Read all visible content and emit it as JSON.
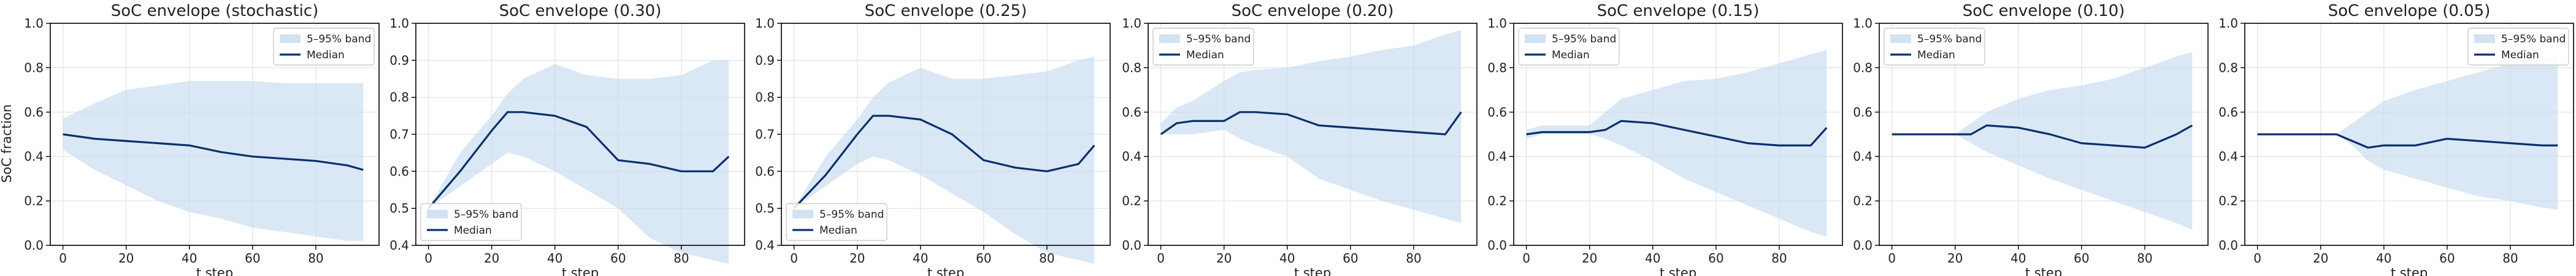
{
  "figure": {
    "ylabel": "SoC fraction",
    "colors": {
      "band": "#c6dbef",
      "median": "#08306b",
      "grid": "#e6e6e6",
      "axis": "#000000"
    }
  },
  "chart_data": [
    {
      "type": "area",
      "title": "SoC envelope (stochastic)",
      "xlabel": "t step",
      "ylabel": "SoC fraction",
      "xlim": [
        -4,
        100
      ],
      "ylim": [
        0,
        1
      ],
      "xticks": [
        0,
        20,
        40,
        60,
        80
      ],
      "yticks": [
        0.0,
        0.2,
        0.4,
        0.6,
        0.8,
        1.0
      ],
      "grid": true,
      "legend": {
        "position": "top-right",
        "entries": [
          "5–95% band",
          "Median"
        ]
      },
      "x": [
        0,
        10,
        20,
        30,
        40,
        50,
        60,
        70,
        80,
        90,
        95
      ],
      "series": [
        {
          "name": "5–95% band",
          "lower": [
            0.43,
            0.34,
            0.27,
            0.2,
            0.15,
            0.12,
            0.08,
            0.06,
            0.04,
            0.02,
            0.02
          ],
          "upper": [
            0.57,
            0.64,
            0.7,
            0.72,
            0.74,
            0.74,
            0.74,
            0.73,
            0.73,
            0.73,
            0.73
          ]
        },
        {
          "name": "Median",
          "values": [
            0.5,
            0.48,
            0.47,
            0.46,
            0.45,
            0.42,
            0.4,
            0.39,
            0.38,
            0.36,
            0.34
          ]
        }
      ]
    },
    {
      "type": "area",
      "title": "SoC envelope (0.30)",
      "xlabel": "t step",
      "xlim": [
        -4,
        100
      ],
      "ylim": [
        0.4,
        1.0
      ],
      "xticks": [
        0,
        20,
        40,
        60,
        80
      ],
      "yticks": [
        0.4,
        0.5,
        0.6,
        0.7,
        0.8,
        0.9,
        1.0
      ],
      "grid": true,
      "legend": {
        "position": "bottom-left",
        "entries": [
          "5–95% band",
          "Median"
        ]
      },
      "x": [
        0,
        10,
        20,
        25,
        30,
        40,
        50,
        60,
        70,
        80,
        90,
        95
      ],
      "series": [
        {
          "name": "5–95% band",
          "lower": [
            0.5,
            0.56,
            0.62,
            0.65,
            0.64,
            0.6,
            0.55,
            0.5,
            0.42,
            0.38,
            0.36,
            0.35
          ],
          "upper": [
            0.5,
            0.65,
            0.75,
            0.81,
            0.85,
            0.89,
            0.86,
            0.85,
            0.85,
            0.86,
            0.9,
            0.9
          ]
        },
        {
          "name": "Median",
          "values": [
            0.5,
            0.6,
            0.71,
            0.76,
            0.76,
            0.75,
            0.72,
            0.63,
            0.62,
            0.6,
            0.6,
            0.64
          ]
        }
      ]
    },
    {
      "type": "area",
      "title": "SoC envelope (0.25)",
      "xlabel": "t step",
      "xlim": [
        -4,
        100
      ],
      "ylim": [
        0.4,
        1.0
      ],
      "xticks": [
        0,
        20,
        40,
        60,
        80
      ],
      "yticks": [
        0.4,
        0.5,
        0.6,
        0.7,
        0.8,
        0.9,
        1.0
      ],
      "grid": true,
      "legend": {
        "position": "bottom-left",
        "entries": [
          "5–95% band",
          "Median"
        ]
      },
      "x": [
        0,
        10,
        20,
        25,
        30,
        40,
        50,
        60,
        70,
        80,
        90,
        95
      ],
      "series": [
        {
          "name": "5–95% band",
          "lower": [
            0.5,
            0.56,
            0.62,
            0.64,
            0.63,
            0.59,
            0.54,
            0.49,
            0.43,
            0.38,
            0.36,
            0.35
          ],
          "upper": [
            0.5,
            0.64,
            0.74,
            0.8,
            0.84,
            0.88,
            0.85,
            0.85,
            0.86,
            0.87,
            0.9,
            0.91
          ]
        },
        {
          "name": "Median",
          "values": [
            0.5,
            0.59,
            0.7,
            0.75,
            0.75,
            0.74,
            0.7,
            0.63,
            0.61,
            0.6,
            0.62,
            0.67
          ]
        }
      ]
    },
    {
      "type": "area",
      "title": "SoC envelope (0.20)",
      "xlabel": "t step",
      "xlim": [
        -4,
        100
      ],
      "ylim": [
        0.0,
        1.0
      ],
      "xticks": [
        0,
        20,
        40,
        60,
        80
      ],
      "yticks": [
        0.0,
        0.2,
        0.4,
        0.6,
        0.8,
        1.0
      ],
      "grid": true,
      "legend": {
        "position": "top-left",
        "entries": [
          "5–95% band",
          "Median"
        ]
      },
      "x": [
        0,
        5,
        10,
        20,
        25,
        30,
        40,
        50,
        60,
        70,
        80,
        90,
        95
      ],
      "series": [
        {
          "name": "5–95% band",
          "lower": [
            0.5,
            0.5,
            0.5,
            0.52,
            0.48,
            0.45,
            0.4,
            0.3,
            0.25,
            0.2,
            0.16,
            0.12,
            0.1
          ],
          "upper": [
            0.55,
            0.62,
            0.65,
            0.74,
            0.78,
            0.79,
            0.8,
            0.83,
            0.85,
            0.88,
            0.9,
            0.95,
            0.97
          ]
        },
        {
          "name": "Median",
          "values": [
            0.5,
            0.55,
            0.56,
            0.56,
            0.6,
            0.6,
            0.59,
            0.54,
            0.53,
            0.52,
            0.51,
            0.5,
            0.6
          ]
        }
      ]
    },
    {
      "type": "area",
      "title": "SoC envelope (0.15)",
      "xlabel": "t step",
      "xlim": [
        -4,
        100
      ],
      "ylim": [
        0.0,
        1.0
      ],
      "xticks": [
        0,
        20,
        40,
        60,
        80
      ],
      "yticks": [
        0.0,
        0.2,
        0.4,
        0.6,
        0.8,
        1.0
      ],
      "grid": true,
      "legend": {
        "position": "top-left",
        "entries": [
          "5–95% band",
          "Median"
        ]
      },
      "x": [
        0,
        5,
        10,
        20,
        25,
        30,
        40,
        50,
        60,
        70,
        80,
        90,
        95
      ],
      "series": [
        {
          "name": "5–95% band",
          "lower": [
            0.48,
            0.5,
            0.5,
            0.5,
            0.48,
            0.45,
            0.38,
            0.3,
            0.24,
            0.18,
            0.12,
            0.06,
            0.04
          ],
          "upper": [
            0.52,
            0.54,
            0.54,
            0.54,
            0.6,
            0.66,
            0.7,
            0.74,
            0.75,
            0.78,
            0.82,
            0.86,
            0.88
          ]
        },
        {
          "name": "Median",
          "values": [
            0.5,
            0.51,
            0.51,
            0.51,
            0.52,
            0.56,
            0.55,
            0.52,
            0.49,
            0.46,
            0.45,
            0.45,
            0.53
          ]
        }
      ]
    },
    {
      "type": "area",
      "title": "SoC envelope (0.10)",
      "xlabel": "t step",
      "xlim": [
        -4,
        100
      ],
      "ylim": [
        0.0,
        1.0
      ],
      "xticks": [
        0,
        20,
        40,
        60,
        80
      ],
      "yticks": [
        0.0,
        0.2,
        0.4,
        0.6,
        0.8,
        1.0
      ],
      "grid": true,
      "legend": {
        "position": "top-left",
        "entries": [
          "5–95% band",
          "Median"
        ]
      },
      "x": [
        0,
        10,
        20,
        25,
        30,
        40,
        50,
        60,
        70,
        80,
        90,
        95
      ],
      "series": [
        {
          "name": "5–95% band",
          "lower": [
            0.5,
            0.5,
            0.5,
            0.46,
            0.42,
            0.36,
            0.3,
            0.25,
            0.2,
            0.15,
            0.1,
            0.07
          ],
          "upper": [
            0.5,
            0.5,
            0.5,
            0.55,
            0.6,
            0.66,
            0.7,
            0.72,
            0.75,
            0.8,
            0.85,
            0.87
          ]
        },
        {
          "name": "Median",
          "values": [
            0.5,
            0.5,
            0.5,
            0.5,
            0.54,
            0.53,
            0.5,
            0.46,
            0.45,
            0.44,
            0.5,
            0.54
          ]
        }
      ]
    },
    {
      "type": "area",
      "title": "SoC envelope (0.05)",
      "xlabel": "t step",
      "xlim": [
        -4,
        100
      ],
      "ylim": [
        0.0,
        1.0
      ],
      "xticks": [
        0,
        20,
        40,
        60,
        80
      ],
      "yticks": [
        0.0,
        0.2,
        0.4,
        0.6,
        0.8,
        1.0
      ],
      "grid": true,
      "legend": {
        "position": "top-right",
        "entries": [
          "5–95% band",
          "Median"
        ]
      },
      "x": [
        0,
        10,
        20,
        25,
        30,
        35,
        40,
        50,
        60,
        70,
        80,
        90,
        95
      ],
      "series": [
        {
          "name": "5–95% band",
          "lower": [
            0.5,
            0.5,
            0.5,
            0.5,
            0.45,
            0.38,
            0.34,
            0.3,
            0.26,
            0.22,
            0.2,
            0.17,
            0.16
          ],
          "upper": [
            0.5,
            0.5,
            0.5,
            0.5,
            0.55,
            0.6,
            0.65,
            0.7,
            0.74,
            0.78,
            0.82,
            0.84,
            0.85
          ]
        },
        {
          "name": "Median",
          "values": [
            0.5,
            0.5,
            0.5,
            0.5,
            0.47,
            0.44,
            0.45,
            0.45,
            0.48,
            0.47,
            0.46,
            0.45,
            0.45
          ]
        }
      ]
    }
  ]
}
